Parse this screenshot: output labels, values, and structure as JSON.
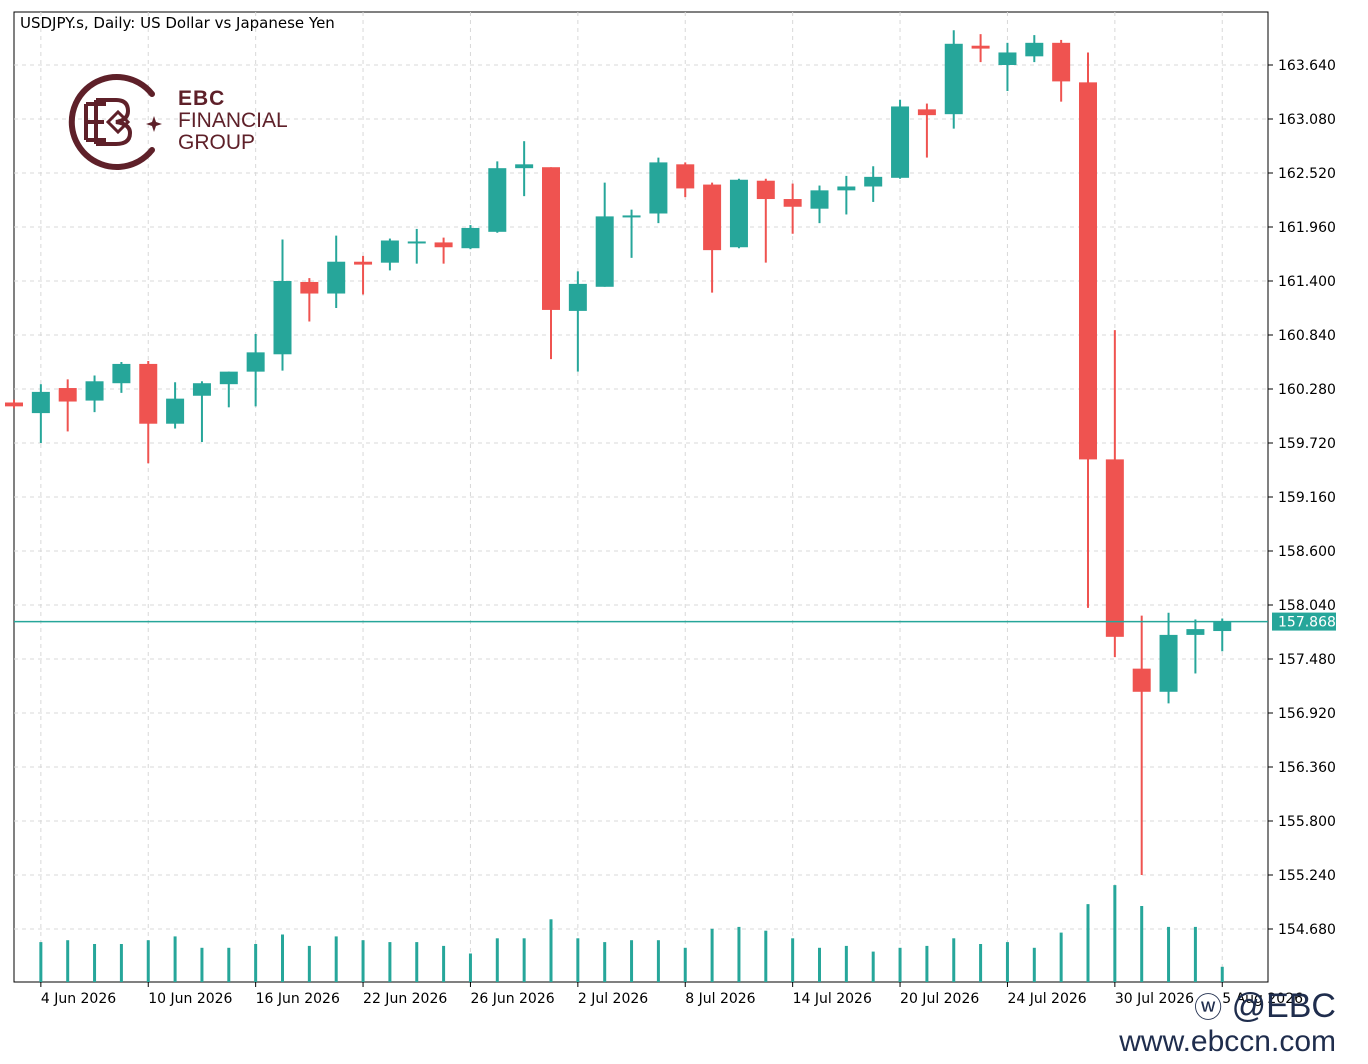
{
  "chart_data": {
    "type": "candlestick",
    "title": "USDJPY.s, Daily:  US Dollar vs Japanese Yen",
    "y_ticks": [
      "163.640",
      "163.080",
      "162.520",
      "161.960",
      "161.400",
      "160.840",
      "160.280",
      "159.720",
      "159.160",
      "158.600",
      "158.040",
      "157.480",
      "156.920",
      "156.360",
      "155.800",
      "155.240",
      "154.680"
    ],
    "x_ticks": [
      {
        "label": "4 Jun 2026",
        "index": 1
      },
      {
        "label": "10 Jun 2026",
        "index": 5
      },
      {
        "label": "16 Jun 2026",
        "index": 9
      },
      {
        "label": "22 Jun 2026",
        "index": 13
      },
      {
        "label": "26 Jun 2026",
        "index": 17
      },
      {
        "label": "2 Jul 2026",
        "index": 21
      },
      {
        "label": "8 Jul 2026",
        "index": 25
      },
      {
        "label": "14 Jul 2026",
        "index": 29
      },
      {
        "label": "20 Jul 2026",
        "index": 33
      },
      {
        "label": "24 Jul 2026",
        "index": 37
      },
      {
        "label": "30 Jul 2026",
        "index": 41
      },
      {
        "label": "5 Aug 2026",
        "index": 45
      }
    ],
    "current_price": "157.868",
    "bull_color": "#26a69a",
    "bear_color": "#ef5350",
    "candles": [
      {
        "o": 160.14,
        "h": 160.17,
        "l": 160.08,
        "c": 160.1,
        "v": 0
      },
      {
        "o": 160.03,
        "h": 160.33,
        "l": 159.72,
        "c": 160.25,
        "v": 2.1
      },
      {
        "o": 160.29,
        "h": 160.38,
        "l": 159.84,
        "c": 160.15,
        "v": 2.2
      },
      {
        "o": 160.16,
        "h": 160.42,
        "l": 160.04,
        "c": 160.36,
        "v": 2.0
      },
      {
        "o": 160.34,
        "h": 160.56,
        "l": 160.24,
        "c": 160.54,
        "v": 2.0
      },
      {
        "o": 160.54,
        "h": 160.57,
        "l": 159.51,
        "c": 159.92,
        "v": 2.2
      },
      {
        "o": 159.92,
        "h": 160.35,
        "l": 159.87,
        "c": 160.18,
        "v": 2.4
      },
      {
        "o": 160.21,
        "h": 160.36,
        "l": 159.73,
        "c": 160.34,
        "v": 1.8
      },
      {
        "o": 160.33,
        "h": 160.46,
        "l": 160.09,
        "c": 160.46,
        "v": 1.8
      },
      {
        "o": 160.46,
        "h": 160.85,
        "l": 160.1,
        "c": 160.66,
        "v": 2.0
      },
      {
        "o": 160.64,
        "h": 161.83,
        "l": 160.47,
        "c": 161.4,
        "v": 2.5
      },
      {
        "o": 161.39,
        "h": 161.43,
        "l": 160.98,
        "c": 161.27,
        "v": 1.9
      },
      {
        "o": 161.27,
        "h": 161.87,
        "l": 161.12,
        "c": 161.6,
        "v": 2.4
      },
      {
        "o": 161.6,
        "h": 161.66,
        "l": 161.26,
        "c": 161.57,
        "v": 2.2
      },
      {
        "o": 161.59,
        "h": 161.84,
        "l": 161.51,
        "c": 161.82,
        "v": 2.1
      },
      {
        "o": 161.81,
        "h": 161.94,
        "l": 161.58,
        "c": 161.81,
        "v": 2.1
      },
      {
        "o": 161.8,
        "h": 161.85,
        "l": 161.58,
        "c": 161.75,
        "v": 1.9
      },
      {
        "o": 161.74,
        "h": 161.98,
        "l": 161.73,
        "c": 161.95,
        "v": 1.5
      },
      {
        "o": 161.91,
        "h": 162.64,
        "l": 161.9,
        "c": 162.57,
        "v": 2.3
      },
      {
        "o": 162.57,
        "h": 162.85,
        "l": 162.28,
        "c": 162.61,
        "v": 2.3
      },
      {
        "o": 162.58,
        "h": 162.58,
        "l": 160.59,
        "c": 161.1,
        "v": 3.3
      },
      {
        "o": 161.09,
        "h": 161.5,
        "l": 160.46,
        "c": 161.37,
        "v": 2.3
      },
      {
        "o": 161.34,
        "h": 162.42,
        "l": 161.34,
        "c": 162.07,
        "v": 2.1
      },
      {
        "o": 162.06,
        "h": 162.14,
        "l": 161.64,
        "c": 162.08,
        "v": 2.2
      },
      {
        "o": 162.1,
        "h": 162.68,
        "l": 162.0,
        "c": 162.63,
        "v": 2.2
      },
      {
        "o": 162.61,
        "h": 162.63,
        "l": 162.27,
        "c": 162.36,
        "v": 1.8
      },
      {
        "o": 162.4,
        "h": 162.42,
        "l": 161.28,
        "c": 161.72,
        "v": 2.8
      },
      {
        "o": 161.75,
        "h": 162.46,
        "l": 161.74,
        "c": 162.45,
        "v": 2.9
      },
      {
        "o": 162.44,
        "h": 162.46,
        "l": 161.59,
        "c": 162.25,
        "v": 2.7
      },
      {
        "o": 162.25,
        "h": 162.41,
        "l": 161.89,
        "c": 162.17,
        "v": 2.3
      },
      {
        "o": 162.15,
        "h": 162.39,
        "l": 162.0,
        "c": 162.34,
        "v": 1.8
      },
      {
        "o": 162.34,
        "h": 162.49,
        "l": 162.09,
        "c": 162.38,
        "v": 1.9
      },
      {
        "o": 162.38,
        "h": 162.59,
        "l": 162.22,
        "c": 162.48,
        "v": 1.6
      },
      {
        "o": 162.47,
        "h": 163.28,
        "l": 162.46,
        "c": 163.21,
        "v": 1.8
      },
      {
        "o": 163.18,
        "h": 163.24,
        "l": 162.68,
        "c": 163.12,
        "v": 1.9
      },
      {
        "o": 163.13,
        "h": 164.0,
        "l": 162.98,
        "c": 163.86,
        "v": 2.3
      },
      {
        "o": 163.84,
        "h": 163.96,
        "l": 163.67,
        "c": 163.81,
        "v": 2.0
      },
      {
        "o": 163.64,
        "h": 163.87,
        "l": 163.37,
        "c": 163.77,
        "v": 2.1
      },
      {
        "o": 163.73,
        "h": 163.95,
        "l": 163.67,
        "c": 163.87,
        "v": 1.8
      },
      {
        "o": 163.87,
        "h": 163.9,
        "l": 163.26,
        "c": 163.47,
        "v": 2.6
      },
      {
        "o": 163.46,
        "h": 163.77,
        "l": 158.01,
        "c": 159.55,
        "v": 4.1
      },
      {
        "o": 159.55,
        "h": 160.89,
        "l": 157.5,
        "c": 157.71,
        "v": 5.1
      },
      {
        "o": 157.38,
        "h": 157.93,
        "l": 155.24,
        "c": 157.14,
        "v": 4.0
      },
      {
        "o": 157.14,
        "h": 157.96,
        "l": 157.02,
        "c": 157.73,
        "v": 2.9
      },
      {
        "o": 157.73,
        "h": 157.89,
        "l": 157.33,
        "c": 157.79,
        "v": 2.9
      },
      {
        "o": 157.77,
        "h": 157.9,
        "l": 157.56,
        "c": 157.87,
        "v": 0.8
      }
    ]
  },
  "logo": {
    "line1": "EBC",
    "line2": "FINANCIAL",
    "line3": "GROUP",
    "color": "#5e2029"
  },
  "watermark": {
    "handle": "@EBC",
    "url": "www.ebccn.com"
  }
}
